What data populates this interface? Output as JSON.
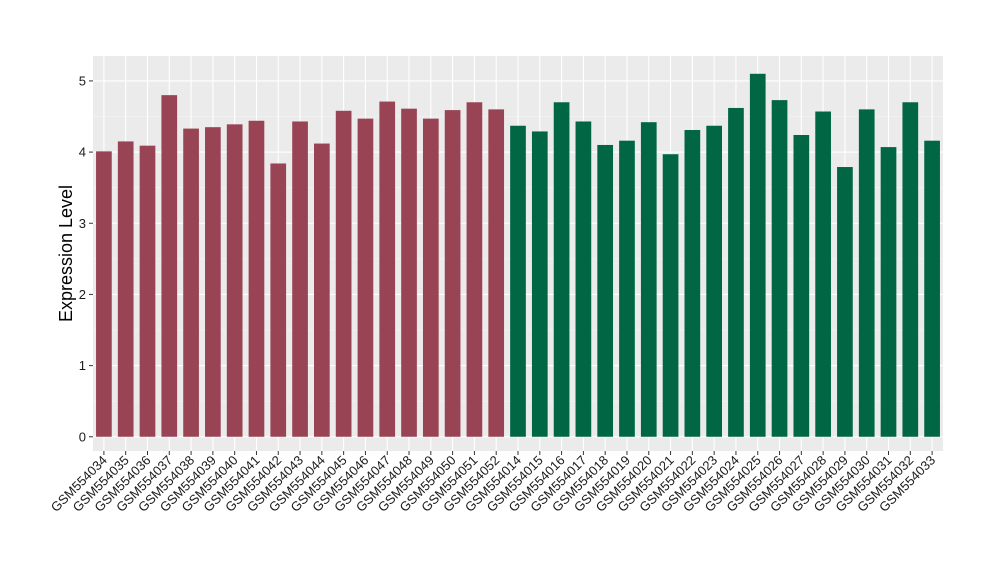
{
  "chart_data": {
    "type": "bar",
    "title": "",
    "xlabel": "",
    "ylabel": "Expression Level",
    "ylim": [
      -0.2,
      5.35
    ],
    "yticks": [
      0,
      1,
      2,
      3,
      4,
      5
    ],
    "grid": true,
    "legend": "none",
    "colors": {
      "group_1": "#994455",
      "group_2": "#006644"
    },
    "panel_background": "#ebebeb",
    "categories": [
      "GSM554034",
      "GSM554035",
      "GSM554036",
      "GSM554037",
      "GSM554038",
      "GSM554039",
      "GSM554040",
      "GSM554041",
      "GSM554042",
      "GSM554043",
      "GSM554044",
      "GSM554045",
      "GSM554046",
      "GSM554047",
      "GSM554048",
      "GSM554049",
      "GSM554050",
      "GSM554051",
      "GSM554052",
      "GSM554014",
      "GSM554015",
      "GSM554016",
      "GSM554017",
      "GSM554018",
      "GSM554019",
      "GSM554020",
      "GSM554021",
      "GSM554022",
      "GSM554023",
      "GSM554024",
      "GSM554025",
      "GSM554026",
      "GSM554027",
      "GSM554028",
      "GSM554029",
      "GSM554030",
      "GSM554031",
      "GSM554032",
      "GSM554033"
    ],
    "values": [
      4.01,
      4.15,
      4.09,
      4.8,
      4.33,
      4.35,
      4.39,
      4.44,
      3.84,
      4.43,
      4.12,
      4.58,
      4.47,
      4.71,
      4.61,
      4.47,
      4.59,
      4.7,
      4.6,
      4.37,
      4.29,
      4.7,
      4.43,
      4.1,
      4.16,
      4.42,
      3.97,
      4.31,
      4.37,
      4.62,
      5.1,
      4.73,
      4.24,
      4.57,
      3.79,
      4.6,
      4.07,
      4.7,
      4.16
    ],
    "groups": [
      1,
      1,
      1,
      1,
      1,
      1,
      1,
      1,
      1,
      1,
      1,
      1,
      1,
      1,
      1,
      1,
      1,
      1,
      1,
      2,
      2,
      2,
      2,
      2,
      2,
      2,
      2,
      2,
      2,
      2,
      2,
      2,
      2,
      2,
      2,
      2,
      2,
      2,
      2
    ]
  }
}
